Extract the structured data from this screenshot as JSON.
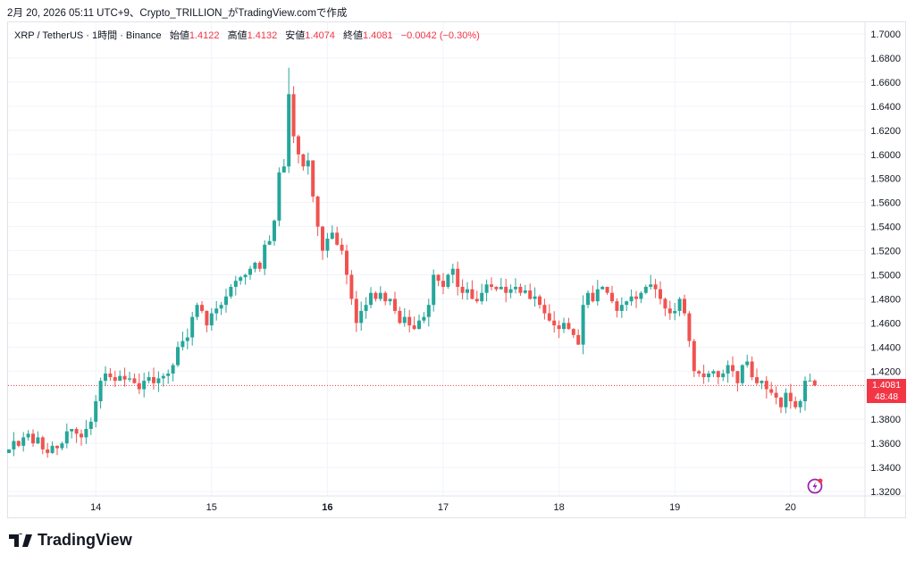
{
  "caption": "2月 20, 2026 05:11 UTC+9、Crypto_TRILLION_がTradingView.comで作成",
  "legend": {
    "symbol": "XRP / TetherUS · 1時間 · Binance",
    "open_label": "始値",
    "open": "1.4122",
    "high_label": "高値",
    "high": "1.4132",
    "low_label": "安値",
    "low": "1.4074",
    "close_label": "終値",
    "close": "1.4081",
    "change": "−0.0042 (−0.30%)"
  },
  "last_price": {
    "price": "1.4081",
    "countdown": "48:48"
  },
  "logo": "TradingView",
  "colors": {
    "up": "#26a69a",
    "down": "#ef5350",
    "last": "#f23645"
  },
  "chart_data": {
    "type": "candlestick",
    "interval": "1h",
    "ylim": [
      1.31,
      1.71
    ],
    "yticks": [
      "1.7000",
      "1.6800",
      "1.6600",
      "1.6400",
      "1.6200",
      "1.6000",
      "1.5800",
      "1.5600",
      "1.5400",
      "1.5200",
      "1.5000",
      "1.4800",
      "1.4600",
      "1.4400",
      "1.4200",
      "1.3800",
      "1.3600",
      "1.3400",
      "1.3200"
    ],
    "xticks": [
      {
        "label": "14",
        "index": 18
      },
      {
        "label": "15",
        "index": 42
      },
      {
        "label": "16",
        "index": 66,
        "bold": true
      },
      {
        "label": "17",
        "index": 90
      },
      {
        "label": "18",
        "index": 114
      },
      {
        "label": "19",
        "index": 138
      },
      {
        "label": "20",
        "index": 162
      }
    ],
    "first_open": 1.352,
    "closes": [
      1.355,
      1.362,
      1.358,
      1.365,
      1.368,
      1.36,
      1.365,
      1.355,
      1.352,
      1.358,
      1.356,
      1.36,
      1.37,
      1.372,
      1.368,
      1.365,
      1.372,
      1.378,
      1.395,
      1.412,
      1.418,
      1.415,
      1.412,
      1.416,
      1.413,
      1.414,
      1.41,
      1.405,
      1.412,
      1.415,
      1.41,
      1.414,
      1.416,
      1.418,
      1.425,
      1.44,
      1.445,
      1.448,
      1.465,
      1.475,
      1.47,
      1.458,
      1.468,
      1.472,
      1.475,
      1.482,
      1.49,
      1.495,
      1.498,
      1.5,
      1.505,
      1.51,
      1.505,
      1.525,
      1.528,
      1.545,
      1.585,
      1.59,
      1.65,
      1.615,
      1.6,
      1.59,
      1.595,
      1.565,
      1.54,
      1.52,
      1.53,
      1.535,
      1.525,
      1.52,
      1.5,
      1.48,
      1.46,
      1.47,
      1.475,
      1.485,
      1.48,
      1.485,
      1.478,
      1.48,
      1.47,
      1.46,
      1.465,
      1.458,
      1.455,
      1.462,
      1.465,
      1.475,
      1.5,
      1.495,
      1.49,
      1.5,
      1.505,
      1.49,
      1.485,
      1.488,
      1.48,
      1.478,
      1.485,
      1.492,
      1.49,
      1.488,
      1.49,
      1.485,
      1.488,
      1.49,
      1.485,
      1.487,
      1.48,
      1.482,
      1.475,
      1.468,
      1.462,
      1.458,
      1.455,
      1.46,
      1.455,
      1.45,
      1.442,
      1.475,
      1.485,
      1.478,
      1.488,
      1.49,
      1.485,
      1.478,
      1.47,
      1.475,
      1.478,
      1.482,
      1.48,
      1.485,
      1.49,
      1.492,
      1.488,
      1.48,
      1.472,
      1.468,
      1.47,
      1.48,
      1.468,
      1.445,
      1.42,
      1.418,
      1.415,
      1.418,
      1.42,
      1.415,
      1.418,
      1.425,
      1.42,
      1.41,
      1.425,
      1.428,
      1.415,
      1.41,
      1.412,
      1.405,
      1.402,
      1.398,
      1.39,
      1.402,
      1.395,
      1.39,
      1.395,
      1.412,
      1.4122,
      1.4081
    ],
    "last_candle": {
      "open": 1.4122,
      "high": 1.4132,
      "low": 1.4074,
      "close": 1.4081
    },
    "peak_high": 1.672
  }
}
